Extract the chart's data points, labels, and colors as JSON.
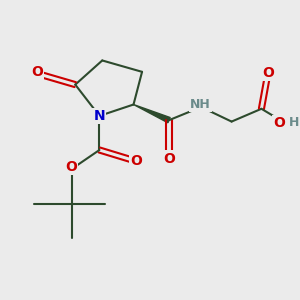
{
  "bg_color": "#ebebeb",
  "bond_color": "#2d4a2d",
  "O_color": "#cc0000",
  "N_color": "#0000cc",
  "H_color": "#6b8b8b",
  "line_width": 1.5,
  "font_size_atom": 10,
  "figsize": [
    3.0,
    3.0
  ],
  "dpi": 100,
  "xlim": [
    0,
    10
  ],
  "ylim": [
    0,
    10
  ]
}
